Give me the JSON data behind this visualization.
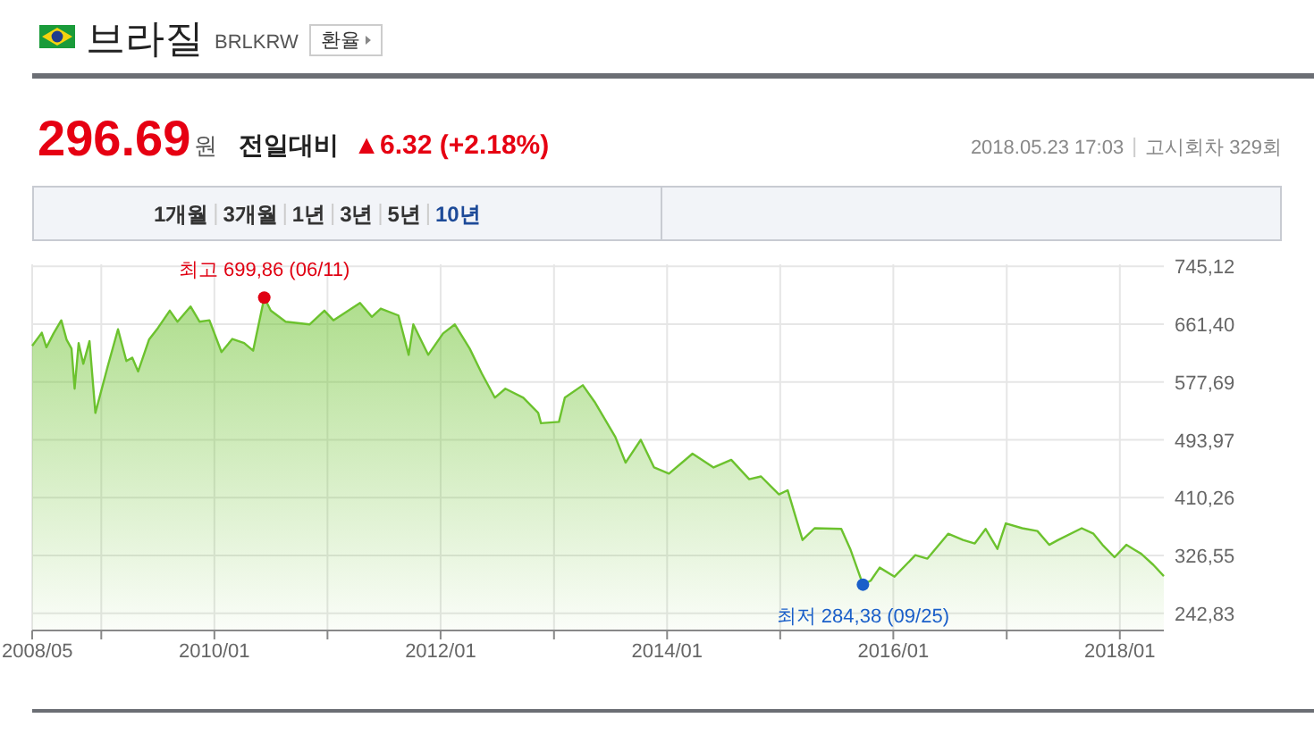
{
  "chart_data": {
    "type": "area",
    "title": "브라질",
    "subtitle": "BRLKRW",
    "annotations": [
      "환율",
      "296.69",
      "원",
      "전일대비",
      "▲6.32 (+2.18%)",
      "2018.05.23 17:03",
      "고시회차 329회",
      "1개월",
      "3개월",
      "1년",
      "3년",
      "5년",
      "10년",
      {
        "text": "최고 699,86 (06/11)",
        "x": "2010-06-11",
        "y": 699.86
      },
      {
        "text": "최저 284,38 (09/25)",
        "x": "2015-09-25",
        "y": 284.38
      }
    ],
    "series": [
      {
        "color": "#6cc22e",
        "x": [
          "2008-05-23",
          "2008-06-23",
          "2008-07-08",
          "2008-07-31",
          "2008-08-25",
          "2008-09-11",
          "2008-09-27",
          "2008-10-07",
          "2008-10-20",
          "2008-11-04",
          "2008-11-24",
          "2008-12-13",
          "2009-01-21",
          "2009-02-24",
          "2009-03-23",
          "2009-04-11",
          "2009-04-30",
          "2009-06-04",
          "2009-07-03",
          "2009-08-10",
          "2009-09-04",
          "2009-10-16",
          "2009-11-14",
          "2009-12-16",
          "2010-01-24",
          "2010-02-28",
          "2010-04-07",
          "2010-05-06",
          "2010-06-11",
          "2010-07-02",
          "2010-08-19",
          "2010-11-04",
          "2010-12-22",
          "2011-01-20",
          "2011-04-16",
          "2011-05-24",
          "2011-06-22",
          "2011-08-18",
          "2011-09-20",
          "2011-10-05",
          "2011-11-22",
          "2012-01-09",
          "2012-02-16",
          "2012-04-04",
          "2012-05-13",
          "2012-06-24",
          "2012-07-28",
          "2012-09-24",
          "2012-11-11",
          "2012-11-20",
          "2013-01-17",
          "2013-02-05",
          "2013-04-04",
          "2013-05-12",
          "2013-07-18",
          "2013-08-20",
          "2013-10-08",
          "2013-11-20",
          "2014-01-07",
          "2014-03-24",
          "2014-05-31",
          "2014-07-27",
          "2014-09-23",
          "2014-10-31",
          "2014-11-29",
          "2014-12-28",
          "2015-01-25",
          "2015-03-14",
          "2015-04-22",
          "2015-07-17",
          "2015-08-15",
          "2015-09-25",
          "2015-10-20",
          "2015-11-18",
          "2016-01-05",
          "2016-03-12",
          "2016-04-20",
          "2016-06-26",
          "2016-08-13",
          "2016-09-20",
          "2016-10-25",
          "2016-12-02",
          "2016-12-29",
          "2017-02-20",
          "2017-04-10",
          "2017-05-18",
          "2017-06-16",
          "2017-08-31",
          "2017-10-08",
          "2017-11-06",
          "2017-12-15",
          "2018-01-22",
          "2018-03-11",
          "2018-04-19",
          "2018-05-23"
        ],
        "values": [
          630,
          649,
          628,
          648,
          667,
          639,
          626,
          568,
          634,
          604,
          637,
          533,
          599,
          654,
          608,
          613,
          593,
          639,
          656,
          681,
          665,
          687,
          665,
          667,
          621,
          640,
          634,
          623,
          699.86,
          681,
          665,
          661,
          681,
          667,
          692,
          672,
          684,
          674,
          617,
          661,
          617,
          648,
          661,
          626,
          590,
          555,
          568,
          555,
          533,
          518,
          520,
          555,
          573,
          549,
          498,
          461,
          494,
          454,
          445,
          474,
          454,
          465,
          437,
          441,
          428,
          415,
          421,
          349,
          366,
          365,
          336,
          284.38,
          290,
          309,
          296,
          327,
          322,
          358,
          349,
          344,
          365,
          336,
          373,
          366,
          362,
          342,
          349,
          366,
          358,
          342,
          324,
          342,
          329,
          313,
          296.69
        ]
      }
    ],
    "xlim": [
      "2008-05-23",
      "2018-05-23"
    ],
    "xticks": [
      {
        "value": "2008-05-23",
        "label": "2008/05"
      },
      {
        "value": "2009-01-01",
        "label": null
      },
      {
        "value": "2010-01-01",
        "label": "2010/01"
      },
      {
        "value": "2011-01-01",
        "label": null
      },
      {
        "value": "2012-01-01",
        "label": "2012/01"
      },
      {
        "value": "2013-01-01",
        "label": null
      },
      {
        "value": "2014-01-01",
        "label": "2014/01"
      },
      {
        "value": "2015-01-01",
        "label": null
      },
      {
        "value": "2016-01-01",
        "label": "2016/01"
      },
      {
        "value": "2017-01-01",
        "label": null
      },
      {
        "value": "2018-01-01",
        "label": "2018/01"
      }
    ],
    "ylim": [
      218,
      748
    ],
    "yticks": [
      {
        "value": 242.83,
        "label": "242,83"
      },
      {
        "value": 326.55,
        "label": "326,55"
      },
      {
        "value": 410.26,
        "label": "410,26"
      },
      {
        "value": 493.97,
        "label": "493,97"
      },
      {
        "value": 577.69,
        "label": "577,69"
      },
      {
        "value": 661.4,
        "label": "661,40"
      },
      {
        "value": 745.12,
        "label": "745,12"
      }
    ],
    "grid": true
  }
}
